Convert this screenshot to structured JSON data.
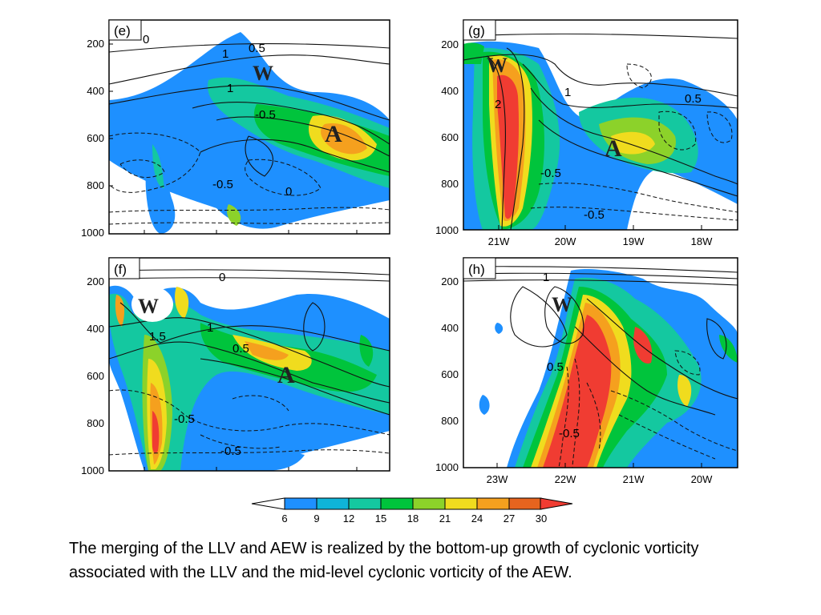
{
  "figure": {
    "panels": [
      {
        "id": "e",
        "label": "(e)",
        "y_ticks": [
          "200",
          "400",
          "600",
          "800",
          "1000"
        ],
        "x_ticks": [],
        "contour_labels": [
          "0",
          "0.5",
          "1",
          "1",
          "-0.5",
          "-0.5",
          "0"
        ],
        "markers": [
          {
            "text": "W"
          },
          {
            "text": "A"
          }
        ]
      },
      {
        "id": "g",
        "label": "(g)",
        "y_ticks": [
          "200",
          "400",
          "600",
          "800",
          "1000"
        ],
        "x_ticks": [
          "21W",
          "20W",
          "19W",
          "18W"
        ],
        "contour_labels": [
          "2",
          "1",
          "0.5",
          "-0.5",
          "-0.5"
        ],
        "markers": [
          {
            "text": "W"
          },
          {
            "text": "A"
          }
        ]
      },
      {
        "id": "f",
        "label": "(f)",
        "y_ticks": [
          "200",
          "400",
          "600",
          "800",
          "1000"
        ],
        "x_ticks": [],
        "contour_labels": [
          "0",
          "1.5",
          "1",
          "0.5",
          "-0.5",
          "-0.5"
        ],
        "markers": [
          {
            "text": "W"
          },
          {
            "text": "A"
          }
        ]
      },
      {
        "id": "h",
        "label": "(h)",
        "y_ticks": [
          "200",
          "400",
          "600",
          "800",
          "1000"
        ],
        "x_ticks": [
          "23W",
          "22W",
          "21W",
          "20W"
        ],
        "contour_labels": [
          "1",
          "0.5",
          "-0.5"
        ],
        "markers": [
          {
            "text": "W"
          }
        ]
      }
    ],
    "colorbar": {
      "labels": [
        "6",
        "9",
        "12",
        "15",
        "18",
        "21",
        "24",
        "27",
        "30"
      ],
      "colors": [
        "#1e90ff",
        "#0fb4d8",
        "#14c8a0",
        "#00c43c",
        "#8cd22a",
        "#f0dc1e",
        "#f5a01e",
        "#e6641e",
        "#f03c32"
      ]
    }
  },
  "caption": "The merging of the LLV and AEW is realized by the bottom-up growth of cyclonic vorticity associated with the LLV and the mid-level cyclonic vorticity of the AEW."
}
